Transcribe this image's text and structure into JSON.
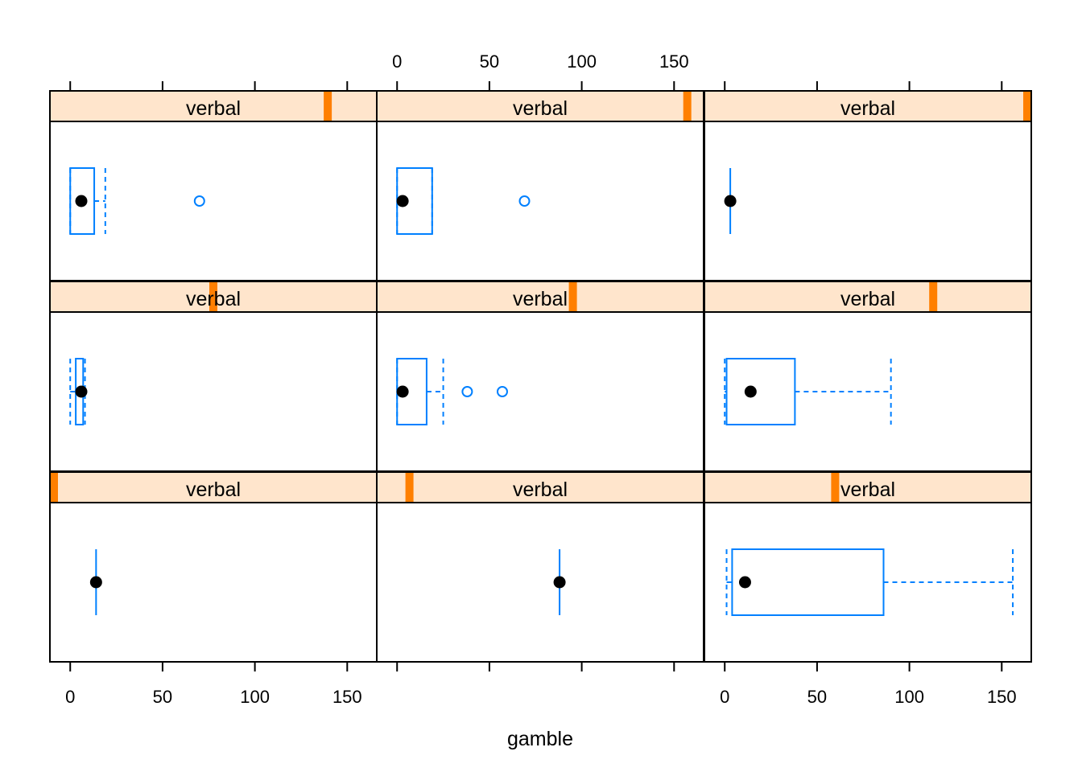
{
  "chart_data": {
    "type": "boxplot",
    "xlabel": "gamble",
    "xlim": [
      -11,
      166
    ],
    "xticks": [
      0,
      50,
      100,
      150
    ],
    "colors": {
      "strip_bg": "#ffe5cc",
      "strip_indicator": "#ff7f00",
      "box": "#0080ff",
      "median_dot": "#000000"
    },
    "panels": [
      {
        "strip_label": "verbal",
        "strip_level": 0.85,
        "whisker_low": 0,
        "q1": 0,
        "median": 6,
        "q3": 13,
        "whisker_high": 19,
        "outliers": [
          70
        ]
      },
      {
        "strip_label": "verbal",
        "strip_level": 0.95,
        "whisker_low": 0,
        "q1": 0,
        "median": 3,
        "q3": 19,
        "whisker_high": 19,
        "outliers": [
          69
        ]
      },
      {
        "strip_label": "verbal",
        "strip_level": 1.0,
        "whisker_low": 3,
        "q1": 3,
        "median": 3,
        "q3": 3,
        "whisker_high": 3,
        "outliers": []
      },
      {
        "strip_label": "verbal",
        "strip_level": 0.5,
        "whisker_low": 0,
        "q1": 3,
        "median": 6,
        "q3": 7,
        "whisker_high": 8,
        "outliers": []
      },
      {
        "strip_label": "verbal",
        "strip_level": 0.6,
        "whisker_low": 0,
        "q1": 0,
        "median": 3,
        "q3": 16,
        "whisker_high": 25,
        "outliers": [
          38,
          57
        ]
      },
      {
        "strip_label": "verbal",
        "strip_level": 0.7,
        "whisker_low": 0,
        "q1": 1,
        "median": 14,
        "q3": 38,
        "whisker_high": 90,
        "outliers": []
      },
      {
        "strip_label": "verbal",
        "strip_level": 0.0,
        "whisker_low": 14,
        "q1": 14,
        "median": 14,
        "q3": 14,
        "whisker_high": 14,
        "outliers": []
      },
      {
        "strip_label": "verbal",
        "strip_level": 0.1,
        "whisker_low": 88,
        "q1": 88,
        "median": 88,
        "q3": 88,
        "whisker_high": 88,
        "outliers": []
      },
      {
        "strip_label": "verbal",
        "strip_level": 0.4,
        "whisker_low": 1,
        "q1": 4,
        "median": 11,
        "q3": 86,
        "whisker_high": 156,
        "outliers": []
      }
    ]
  }
}
